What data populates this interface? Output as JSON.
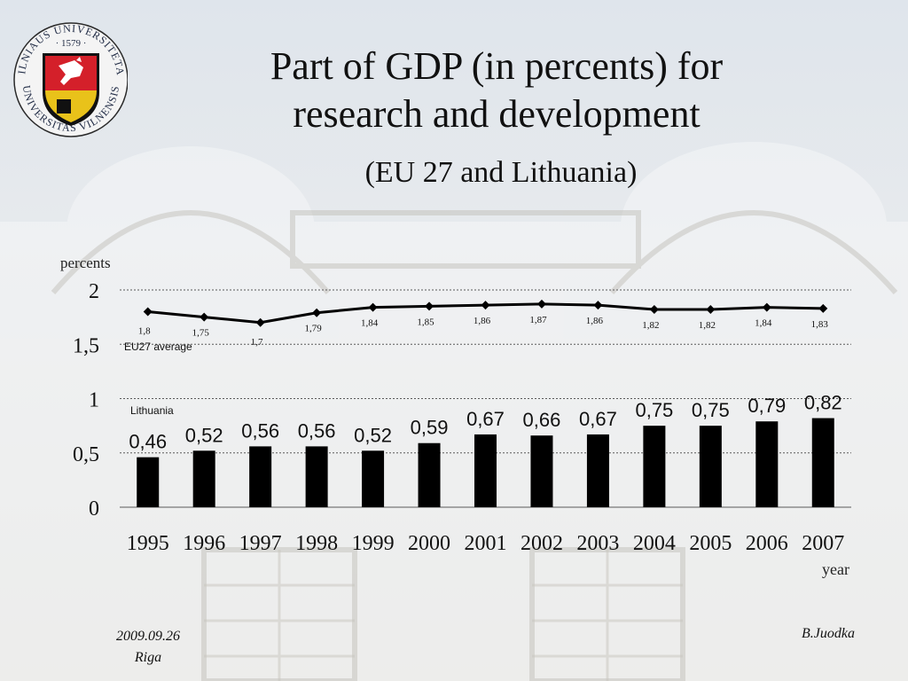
{
  "slide": {
    "title_line1": "Part of GDP (in percents) for",
    "title_line2": "research and development",
    "subtitle": "(EU 27 and Lithuania)",
    "logo_text_top": "VILNIAUS UNIVERSITETAS",
    "logo_text_bottom": "UNIVERSITAS VILNENSIS",
    "logo_year": "· 1579 ·",
    "footer_date": "2009.09.26",
    "footer_place": "Riga",
    "footer_author": "B.Juodka"
  },
  "chart_data": {
    "type": "bar",
    "ylabel": "percents",
    "xlabel": "year",
    "ylim": [
      0,
      2
    ],
    "yticks": [
      0,
      0.5,
      1,
      1.5,
      2
    ],
    "ytick_labels": [
      "0",
      "0,5",
      "1",
      "1,5",
      "2"
    ],
    "grid": true,
    "categories": [
      "1995",
      "1996",
      "1997",
      "1998",
      "1999",
      "2000",
      "2001",
      "2002",
      "2003",
      "2004",
      "2005",
      "2006",
      "2007"
    ],
    "series": [
      {
        "name": "Lithuania",
        "type": "bar",
        "values": [
          0.46,
          0.52,
          0.56,
          0.56,
          0.52,
          0.59,
          0.67,
          0.66,
          0.67,
          0.75,
          0.75,
          0.79,
          0.82
        ],
        "labels": [
          "0,46",
          "0,52",
          "0,56",
          "0,56",
          "0,52",
          "0,59",
          "0,67",
          "0,66",
          "0,67",
          "0,75",
          "0,75",
          "0,79",
          "0,82"
        ],
        "color": "#000000"
      },
      {
        "name": "EU27 average",
        "type": "line",
        "values": [
          1.8,
          1.75,
          1.7,
          1.79,
          1.84,
          1.85,
          1.86,
          1.87,
          1.86,
          1.82,
          1.82,
          1.84,
          1.83
        ],
        "labels": [
          "1,8",
          "1,75",
          "1,7",
          "1,79",
          "1,84",
          "1,85",
          "1,86",
          "1,87",
          "1,86",
          "1,82",
          "1,82",
          "1,84",
          "1,83"
        ],
        "color": "#000000"
      }
    ]
  }
}
